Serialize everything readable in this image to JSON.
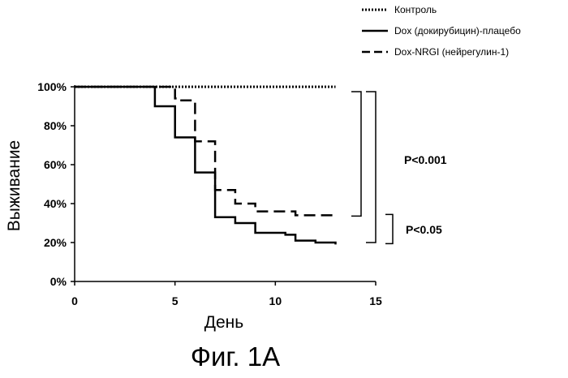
{
  "chart_data": {
    "type": "line",
    "caption": "Фиг. 1А",
    "xlabel": "День",
    "ylabel": "Выживание",
    "xlim": [
      0,
      15
    ],
    "ylim": [
      0,
      100
    ],
    "x_ticks": [
      "0",
      "5",
      "10",
      "15"
    ],
    "y_ticks": [
      "0%",
      "20%",
      "40%",
      "60%",
      "80%",
      "100%"
    ],
    "grid": false,
    "legend_position": "top-right",
    "series": [
      {
        "name": "Контроль",
        "style": "dotted",
        "step_points": [
          [
            0,
            100
          ],
          [
            13,
            100
          ]
        ]
      },
      {
        "name": "Dox (докирубицин)-плацебо",
        "style": "solid",
        "step_points": [
          [
            0,
            100
          ],
          [
            4,
            100
          ],
          [
            4,
            90
          ],
          [
            5,
            90
          ],
          [
            5,
            74
          ],
          [
            6,
            74
          ],
          [
            6,
            56
          ],
          [
            7,
            56
          ],
          [
            7,
            33
          ],
          [
            8,
            33
          ],
          [
            8,
            30
          ],
          [
            9,
            30
          ],
          [
            9,
            25
          ],
          [
            10.5,
            25
          ],
          [
            10.5,
            24
          ],
          [
            11,
            24
          ],
          [
            11,
            21
          ],
          [
            12,
            21
          ],
          [
            12,
            20
          ],
          [
            13,
            20
          ],
          [
            13,
            19
          ]
        ]
      },
      {
        "name": "Dox-NRGI (нейрегулин-1)",
        "style": "dashed",
        "step_points": [
          [
            0,
            100
          ],
          [
            5,
            100
          ],
          [
            5,
            94
          ],
          [
            5.2,
            94
          ],
          [
            5.2,
            93
          ],
          [
            6,
            93
          ],
          [
            6,
            72
          ],
          [
            7,
            72
          ],
          [
            7,
            47
          ],
          [
            8,
            47
          ],
          [
            8,
            40
          ],
          [
            9,
            40
          ],
          [
            9,
            36
          ],
          [
            11,
            36
          ],
          [
            11,
            34
          ],
          [
            13,
            34
          ]
        ]
      }
    ],
    "annotations": [
      {
        "text": "P<0.001",
        "bracket_y": [
          34,
          100
        ]
      },
      {
        "text": "P<0.05",
        "bracket_y": [
          19,
          34
        ]
      }
    ]
  }
}
